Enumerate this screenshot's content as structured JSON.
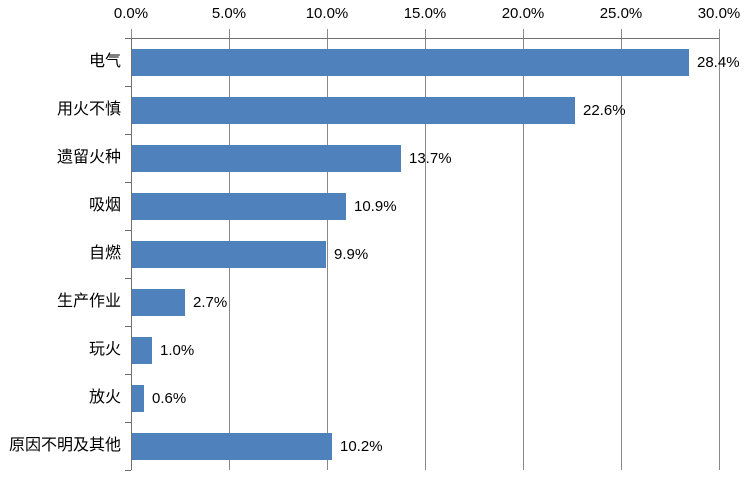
{
  "chart_data": {
    "type": "bar",
    "orientation": "horizontal",
    "title": "",
    "xlabel": "",
    "ylabel": "",
    "categories": [
      "电气",
      "用火不慎",
      "遗留火种",
      "吸烟",
      "自燃",
      "生产作业",
      "玩火",
      "放火",
      "原因不明及其他"
    ],
    "values": [
      28.4,
      22.6,
      13.7,
      10.9,
      9.9,
      2.7,
      1.0,
      0.6,
      10.2
    ],
    "value_labels": [
      "28.4%",
      "22.6%",
      "13.7%",
      "10.9%",
      "9.9%",
      "2.7%",
      "1.0%",
      "0.6%",
      "10.2%"
    ],
    "value_axis": {
      "position": "top",
      "min": 0,
      "max": 30,
      "step": 5,
      "tick_labels": [
        "0.0%",
        "5.0%",
        "10.0%",
        "15.0%",
        "20.0%",
        "25.0%",
        "30.0%"
      ]
    },
    "grid": true,
    "legend": false,
    "colors": {
      "bar": "#4F81BD",
      "gridline": "#898989",
      "axis_line": "#707070",
      "text": "#000000",
      "background": "#FFFFFF"
    }
  }
}
